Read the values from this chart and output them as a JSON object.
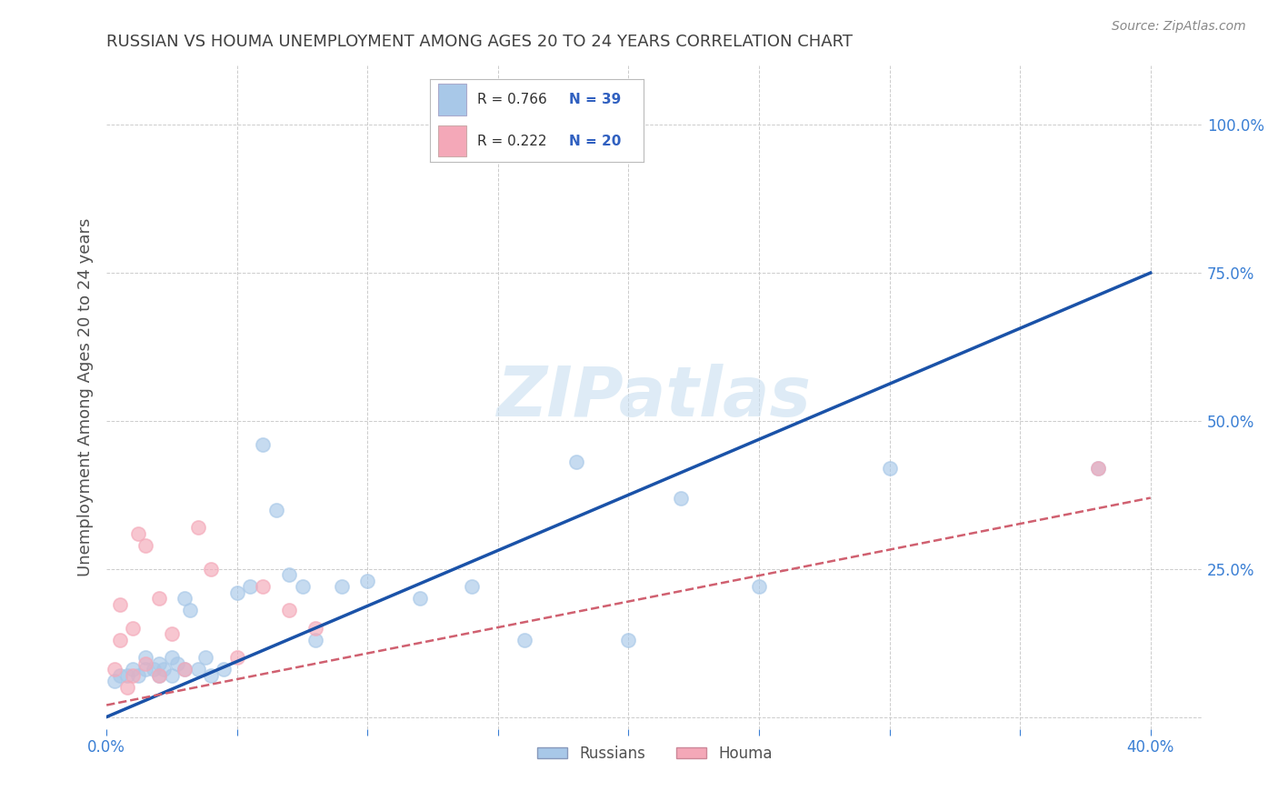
{
  "title": "RUSSIAN VS HOUMA UNEMPLOYMENT AMONG AGES 20 TO 24 YEARS CORRELATION CHART",
  "source": "Source: ZipAtlas.com",
  "ylabel": "Unemployment Among Ages 20 to 24 years",
  "xlim": [
    0.0,
    0.42
  ],
  "ylim": [
    -0.02,
    1.1
  ],
  "xticks": [
    0.0,
    0.05,
    0.1,
    0.15,
    0.2,
    0.25,
    0.3,
    0.35,
    0.4
  ],
  "xticklabels": [
    "0.0%",
    "",
    "",
    "",
    "",
    "",
    "",
    "",
    "40.0%"
  ],
  "ytick_positions": [
    0.0,
    0.25,
    0.5,
    0.75,
    1.0
  ],
  "yticklabels": [
    "",
    "25.0%",
    "50.0%",
    "75.0%",
    "100.0%"
  ],
  "russian_R": "0.766",
  "russian_N": "39",
  "houma_R": "0.222",
  "houma_N": "20",
  "russian_color": "#a8c8e8",
  "houma_color": "#f4a8b8",
  "russian_line_color": "#1a52a8",
  "houma_line_color": "#d06070",
  "r_label_color": "#303030",
  "n_label_color": "#3060c0",
  "watermark_text": "ZIPatlas",
  "watermark_color": "#c8dff0",
  "russian_scatter_x": [
    0.003,
    0.005,
    0.008,
    0.01,
    0.012,
    0.015,
    0.015,
    0.018,
    0.02,
    0.02,
    0.022,
    0.025,
    0.025,
    0.027,
    0.03,
    0.03,
    0.032,
    0.035,
    0.038,
    0.04,
    0.045,
    0.05,
    0.055,
    0.06,
    0.065,
    0.07,
    0.075,
    0.08,
    0.09,
    0.1,
    0.12,
    0.14,
    0.16,
    0.18,
    0.2,
    0.22,
    0.25,
    0.3,
    0.38
  ],
  "russian_scatter_y": [
    0.06,
    0.07,
    0.07,
    0.08,
    0.07,
    0.08,
    0.1,
    0.08,
    0.07,
    0.09,
    0.08,
    0.07,
    0.1,
    0.09,
    0.08,
    0.2,
    0.18,
    0.08,
    0.1,
    0.07,
    0.08,
    0.21,
    0.22,
    0.46,
    0.35,
    0.24,
    0.22,
    0.13,
    0.22,
    0.23,
    0.2,
    0.22,
    0.13,
    0.43,
    0.13,
    0.37,
    0.22,
    0.42,
    0.42
  ],
  "houma_scatter_x": [
    0.003,
    0.005,
    0.005,
    0.008,
    0.01,
    0.01,
    0.012,
    0.015,
    0.015,
    0.02,
    0.02,
    0.025,
    0.03,
    0.035,
    0.04,
    0.05,
    0.06,
    0.07,
    0.08,
    0.38
  ],
  "houma_scatter_y": [
    0.08,
    0.13,
    0.19,
    0.05,
    0.07,
    0.15,
    0.31,
    0.09,
    0.29,
    0.07,
    0.2,
    0.14,
    0.08,
    0.32,
    0.25,
    0.1,
    0.22,
    0.18,
    0.15,
    0.42
  ],
  "russian_trendline_x": [
    0.0,
    0.4
  ],
  "russian_trendline_y": [
    0.0,
    0.75
  ],
  "houma_trendline_x": [
    0.0,
    0.4
  ],
  "houma_trendline_y": [
    0.02,
    0.37
  ],
  "grid_color": "#cccccc",
  "bg_color": "#ffffff",
  "title_color": "#404040",
  "axis_color": "#505050",
  "tick_color": "#3a7fd4",
  "legend_box_border": "#bbbbbb",
  "scatter_size": 120,
  "scatter_alpha": 0.65,
  "scatter_edge_width": 1.2
}
